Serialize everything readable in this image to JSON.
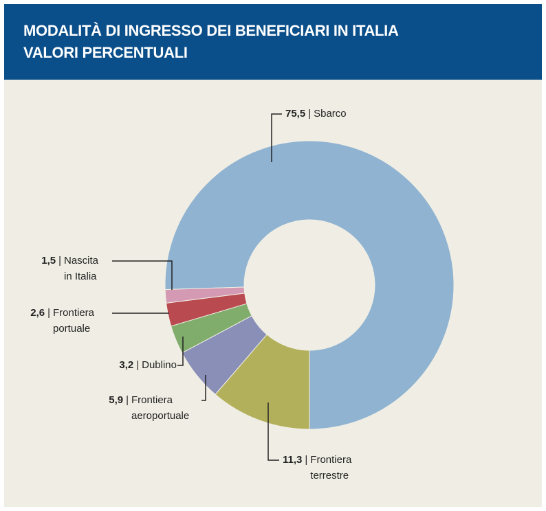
{
  "chart_data": {
    "type": "donut",
    "title": "MODALITÀ DI INGRESSO DEI BENEFICIARI IN ITALIA",
    "subtitle": "VALORI PERCENTUALI",
    "separator": "|",
    "categories": [
      "Sbarco",
      "Frontiera terrestre",
      "Frontiera aeroportuale",
      "Dublino",
      "Frontiera portuale",
      "Nascita in Italia"
    ],
    "values": [
      75.5,
      11.3,
      5.9,
      3.2,
      2.6,
      1.5
    ],
    "value_labels": [
      "75,5",
      "11,3",
      "5,9",
      "3,2",
      "2,6",
      "1,5"
    ],
    "colors": [
      "#8fb3d1",
      "#b3b05c",
      "#8a8fb8",
      "#80ad6b",
      "#b84a50",
      "#d49ab4"
    ]
  }
}
